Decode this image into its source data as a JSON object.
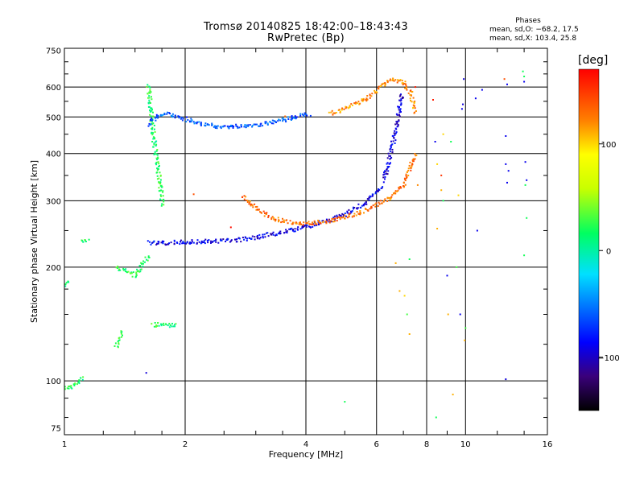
{
  "title": {
    "line1": "Tromsø 20140825 18:42:00–18:43:43",
    "line2": "RwPretec (Bp)"
  },
  "phases": {
    "title": "Phases",
    "o_line": "mean, sd,O: −68.2, 17.5",
    "x_line": "mean, sd,X: 103.4, 25.8"
  },
  "colorbar": {
    "unit": "[deg]",
    "range": [
      -150,
      170
    ],
    "ticks": [
      100,
      0,
      -100
    ],
    "tick_labels": [
      "100",
      "0",
      "−100"
    ]
  },
  "colors": {
    "o_mode": "#2a6ef0",
    "x_mode": "#ffa500",
    "baseline": "#3fb8f0"
  },
  "chart_data": {
    "type": "scatter",
    "xscale": "log",
    "yscale": "log",
    "xlabel": "Frequency [MHz]",
    "ylabel": "Stationary phase Virtual Height [km]",
    "xlim": [
      1,
      16
    ],
    "ylim": [
      72,
      760
    ],
    "xticks": [
      1,
      2,
      4,
      6,
      8,
      10,
      16
    ],
    "yticks": [
      75,
      100,
      200,
      300,
      400,
      500,
      600,
      750
    ],
    "grid": true,
    "traces": [
      {
        "x": [
          1.0,
          1.03,
          1.05,
          1.08,
          1.12
        ],
        "y": [
          96,
          96,
          97,
          99,
          102
        ],
        "phase": 20
      },
      {
        "x": [
          1.0,
          1.02
        ],
        "y": [
          178,
          185
        ],
        "phase": 20
      },
      {
        "x": [
          1.1,
          1.15
        ],
        "y": [
          236,
          236
        ],
        "phase": 20
      },
      {
        "x": [
          1.35,
          1.4
        ],
        "y": [
          123,
          135
        ],
        "phase": 20
      },
      {
        "x": [
          1.35,
          1.42,
          1.5,
          1.55,
          1.62
        ],
        "y": [
          200,
          195,
          190,
          200,
          215
        ],
        "phase": 20
      },
      {
        "x": [
          1.62,
          1.65,
          1.68,
          1.72,
          1.76
        ],
        "y": [
          605,
          500,
          420,
          350,
          290
        ],
        "phase": 20
      },
      {
        "x": [
          1.66,
          1.72,
          1.78,
          1.86,
          1.9
        ],
        "y": [
          140,
          141,
          141,
          140,
          142
        ],
        "phase": 20
      },
      {
        "x": [
          1.62,
          1.7,
          1.8,
          1.95,
          2.2,
          2.5,
          2.9,
          3.2,
          3.5,
          3.8,
          4.1
        ],
        "y": [
          475,
          500,
          510,
          498,
          478,
          470,
          475,
          480,
          490,
          500,
          510
        ],
        "phase": -60
      },
      {
        "x": [
          1.62,
          1.8,
          2.0,
          2.3,
          2.7,
          3.0,
          3.4,
          3.8,
          4.2,
          4.6,
          5.0,
          5.3,
          5.6,
          5.9,
          6.2
        ],
        "y": [
          232,
          232,
          233,
          234,
          236,
          240,
          246,
          252,
          260,
          267,
          276,
          285,
          295,
          310,
          330
        ],
        "phase": -90
      },
      {
        "x": [
          6.25,
          6.45,
          6.6,
          6.75,
          6.85,
          6.95
        ],
        "y": [
          340,
          380,
          430,
          480,
          530,
          580
        ],
        "phase": -95
      },
      {
        "x": [
          2.8,
          3.0,
          3.3,
          3.7,
          4.1,
          4.6,
          5.1,
          5.6,
          6.0,
          6.5,
          7.0,
          7.5
        ],
        "y": [
          310,
          285,
          270,
          262,
          262,
          265,
          273,
          283,
          293,
          305,
          330,
          400
        ],
        "phase": 130
      },
      {
        "x": [
          4.6,
          5.0,
          5.4,
          5.7,
          6.0,
          6.5,
          7.0,
          7.3,
          7.5
        ],
        "y": [
          510,
          525,
          545,
          560,
          585,
          630,
          620,
          580,
          510
        ],
        "phase": 120
      }
    ],
    "scattered_points": [
      {
        "x": 3.55,
        "y": 502,
        "phase": 130
      },
      {
        "x": 2.1,
        "y": 312,
        "phase": 140
      },
      {
        "x": 2.6,
        "y": 255,
        "phase": 165
      },
      {
        "x": 6.7,
        "y": 205,
        "phase": 110
      },
      {
        "x": 6.85,
        "y": 173,
        "phase": 110
      },
      {
        "x": 7.05,
        "y": 168,
        "phase": 100
      },
      {
        "x": 7.15,
        "y": 150,
        "phase": 30
      },
      {
        "x": 7.25,
        "y": 210,
        "phase": 20
      },
      {
        "x": 7.25,
        "y": 133,
        "phase": 110
      },
      {
        "x": 7.5,
        "y": 600,
        "phase": 160
      },
      {
        "x": 7.6,
        "y": 330,
        "phase": 120
      },
      {
        "x": 8.3,
        "y": 555,
        "phase": 160
      },
      {
        "x": 8.5,
        "y": 375,
        "phase": 100
      },
      {
        "x": 8.5,
        "y": 253,
        "phase": 110
      },
      {
        "x": 8.7,
        "y": 350,
        "phase": 150
      },
      {
        "x": 8.7,
        "y": 320,
        "phase": 110
      },
      {
        "x": 8.4,
        "y": 430,
        "phase": -90
      },
      {
        "x": 8.45,
        "y": 80,
        "phase": 20
      },
      {
        "x": 8.8,
        "y": 300,
        "phase": 20
      },
      {
        "x": 9.0,
        "y": 190,
        "phase": -90
      },
      {
        "x": 9.05,
        "y": 150,
        "phase": 110
      },
      {
        "x": 9.2,
        "y": 430,
        "phase": 20
      },
      {
        "x": 9.3,
        "y": 92,
        "phase": 110
      },
      {
        "x": 8.8,
        "y": 450,
        "phase": 100
      },
      {
        "x": 9.5,
        "y": 200,
        "phase": 30
      },
      {
        "x": 9.6,
        "y": 310,
        "phase": 100
      },
      {
        "x": 9.7,
        "y": 150,
        "phase": -90
      },
      {
        "x": 9.8,
        "y": 525,
        "phase": -90
      },
      {
        "x": 9.85,
        "y": 540,
        "phase": -95
      },
      {
        "x": 9.9,
        "y": 630,
        "phase": -95
      },
      {
        "x": 9.95,
        "y": 128,
        "phase": 110
      },
      {
        "x": 10.0,
        "y": 138,
        "phase": 30
      },
      {
        "x": 10.6,
        "y": 560,
        "phase": -90
      },
      {
        "x": 10.7,
        "y": 250,
        "phase": -90
      },
      {
        "x": 11.0,
        "y": 590,
        "phase": -90
      },
      {
        "x": 12.5,
        "y": 630,
        "phase": 140
      },
      {
        "x": 12.7,
        "y": 610,
        "phase": -90
      },
      {
        "x": 12.6,
        "y": 445,
        "phase": -90
      },
      {
        "x": 12.6,
        "y": 375,
        "phase": -90
      },
      {
        "x": 12.7,
        "y": 335,
        "phase": -90
      },
      {
        "x": 12.8,
        "y": 360,
        "phase": -90
      },
      {
        "x": 12.6,
        "y": 101,
        "phase": -95
      },
      {
        "x": 13.9,
        "y": 660,
        "phase": 20
      },
      {
        "x": 14.0,
        "y": 620,
        "phase": -90
      },
      {
        "x": 14.0,
        "y": 640,
        "phase": 20
      },
      {
        "x": 14.1,
        "y": 330,
        "phase": 20
      },
      {
        "x": 14.2,
        "y": 340,
        "phase": -90
      },
      {
        "x": 14.2,
        "y": 270,
        "phase": 20
      },
      {
        "x": 14.0,
        "y": 215,
        "phase": 20
      },
      {
        "x": 14.1,
        "y": 380,
        "phase": -90
      },
      {
        "x": 5.0,
        "y": 88,
        "phase": 20
      },
      {
        "x": 1.6,
        "y": 105,
        "phase": -95
      }
    ]
  }
}
